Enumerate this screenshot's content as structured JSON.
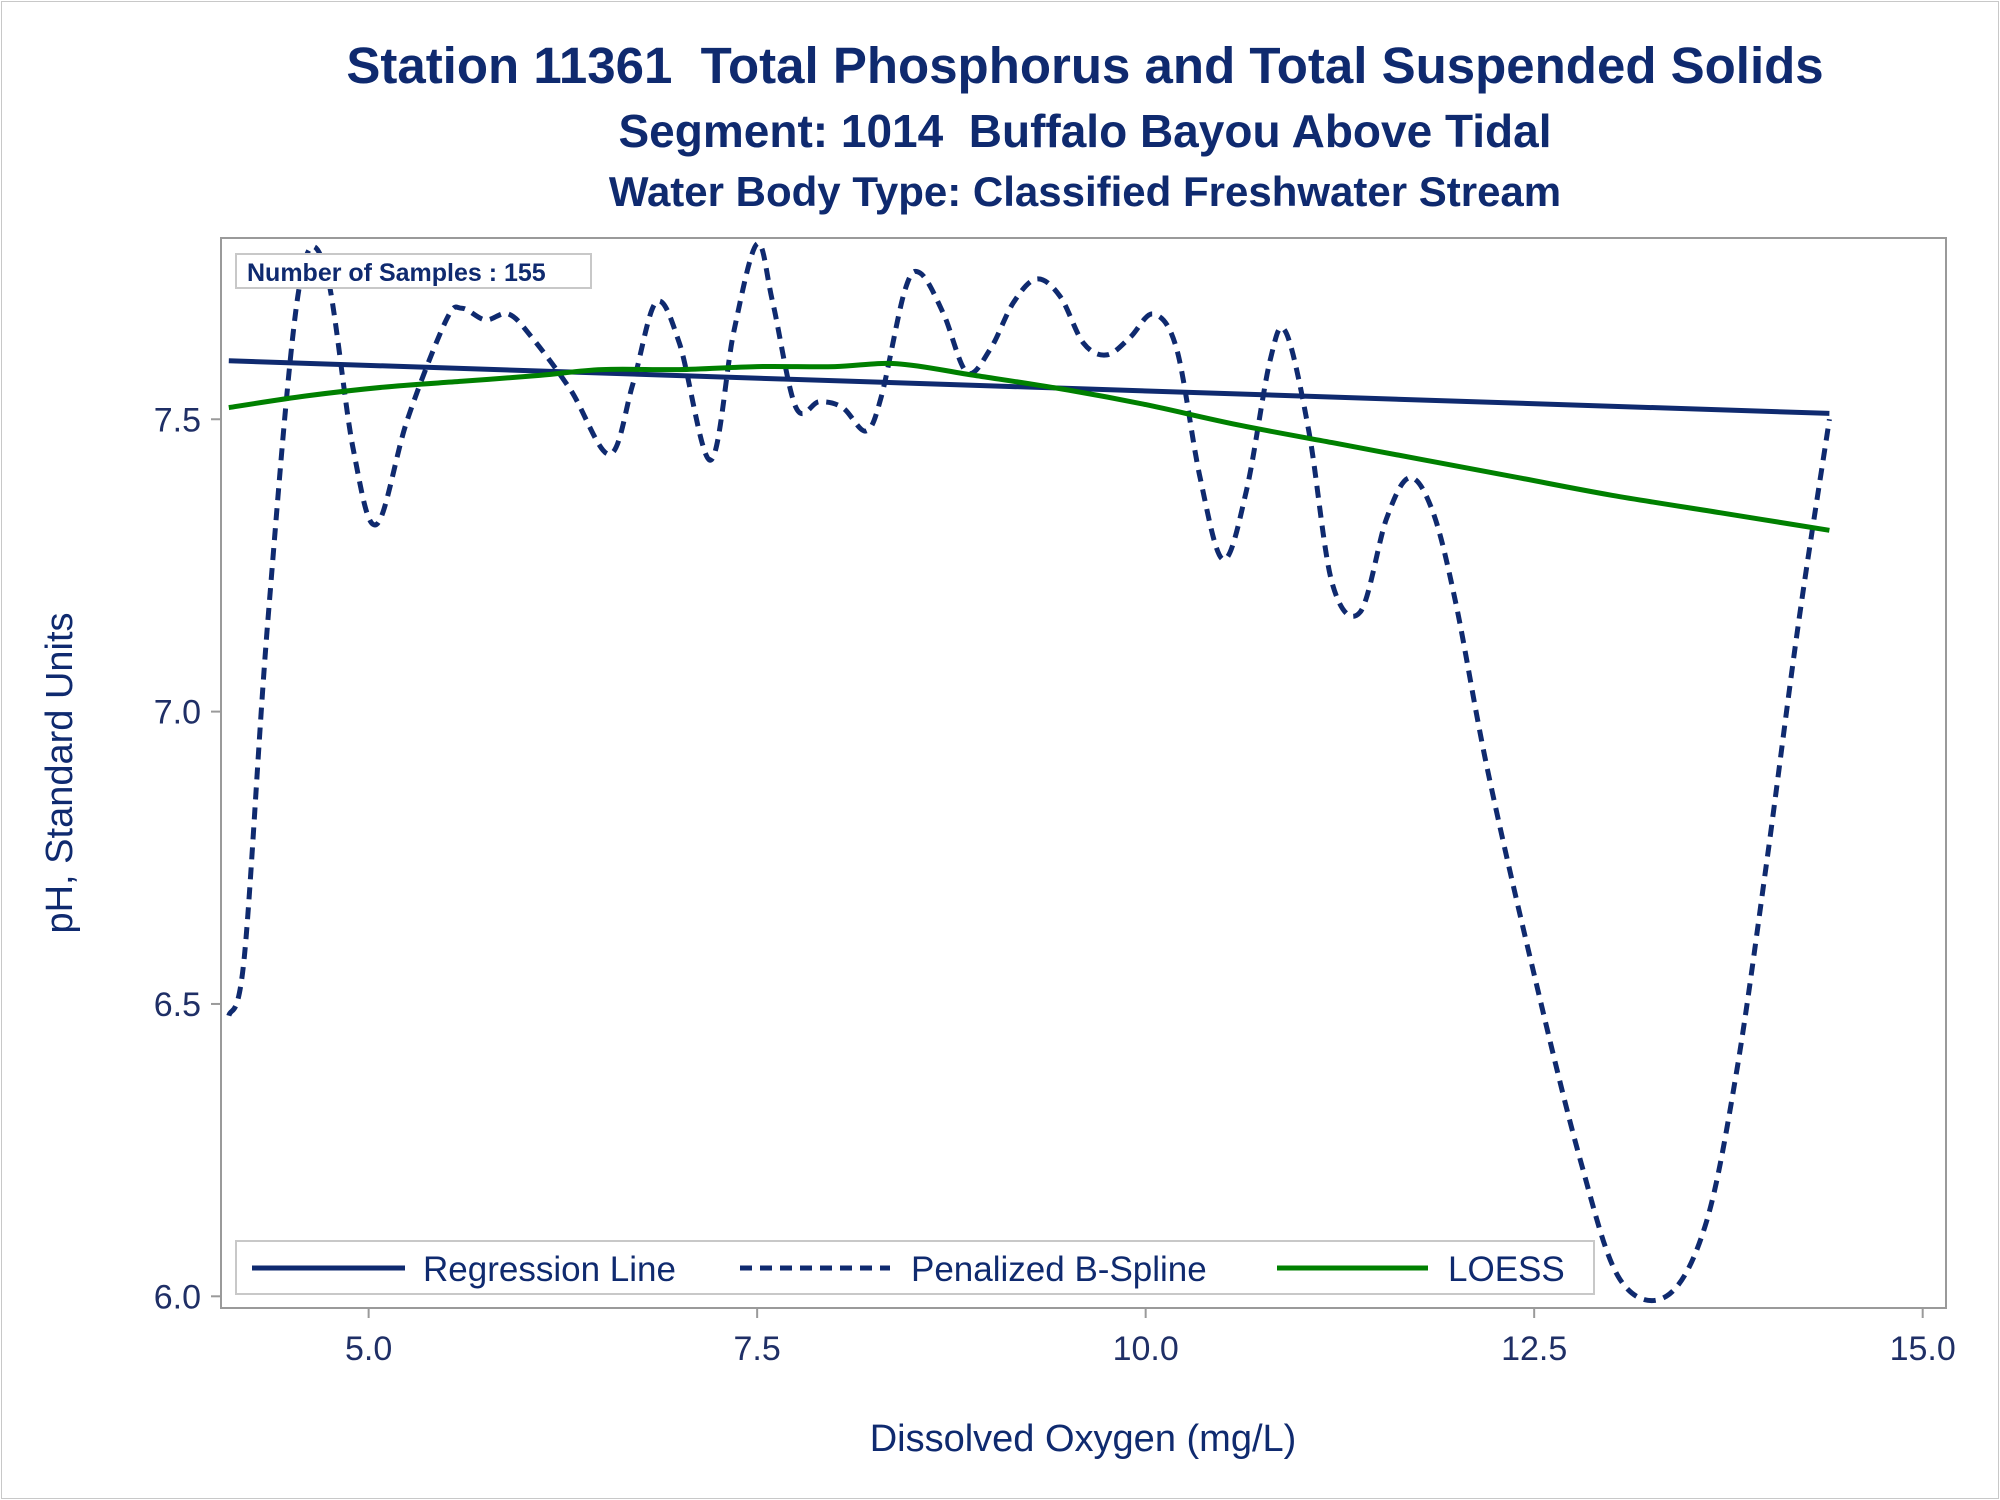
{
  "chart_data": {
    "type": "line",
    "title": "Station 11361  Total Phosphorus and Total Suspended Solids",
    "subtitle": "Segment: 1014  Buffalo Bayou Above Tidal",
    "subtitle2": "Water Body Type: Classified Freshwater Stream",
    "xlabel": "Dissolved Oxygen (mg/L)",
    "ylabel": "pH, Standard Units",
    "xlim": [
      4.05,
      15.15
    ],
    "ylim": [
      5.98,
      7.81
    ],
    "xticks": [
      "5.0",
      "7.5",
      "10.0",
      "12.5",
      "15.0"
    ],
    "yticks": [
      "6.0",
      "6.5",
      "7.0",
      "7.5"
    ],
    "annotation": "Number of Samples : 155",
    "legend_position": "bottom-inside",
    "grid": false,
    "series": [
      {
        "name": "Regression Line",
        "style": "solid",
        "color": "#0f2a6f",
        "x": [
          4.1,
          14.4
        ],
        "y": [
          7.6,
          7.51
        ]
      },
      {
        "name": "Penalized B-Spline",
        "style": "dashed",
        "color": "#0f2a6f",
        "x": [
          4.1,
          4.2,
          4.35,
          4.55,
          4.72,
          4.9,
          5.05,
          5.25,
          5.5,
          5.6,
          5.75,
          5.9,
          6.05,
          6.3,
          6.55,
          6.7,
          6.85,
          7.0,
          7.2,
          7.35,
          7.5,
          7.6,
          7.75,
          7.9,
          8.05,
          8.2,
          8.3,
          8.45,
          8.55,
          8.7,
          8.85,
          9.0,
          9.15,
          9.3,
          9.45,
          9.6,
          9.75,
          9.9,
          10.05,
          10.2,
          10.35,
          10.5,
          10.65,
          10.8,
          10.9,
          11.05,
          11.2,
          11.38,
          11.55,
          11.7,
          11.85,
          12.0,
          12.2,
          12.5,
          12.8,
          13.05,
          13.35,
          13.6,
          13.8,
          14.0,
          14.2,
          14.4
        ],
        "y": [
          6.48,
          6.58,
          7.15,
          7.72,
          7.76,
          7.45,
          7.32,
          7.5,
          7.67,
          7.69,
          7.67,
          7.68,
          7.64,
          7.55,
          7.44,
          7.56,
          7.7,
          7.63,
          7.43,
          7.65,
          7.8,
          7.7,
          7.52,
          7.53,
          7.52,
          7.48,
          7.54,
          7.72,
          7.75,
          7.68,
          7.58,
          7.62,
          7.7,
          7.74,
          7.71,
          7.63,
          7.61,
          7.64,
          7.68,
          7.62,
          7.4,
          7.26,
          7.38,
          7.6,
          7.65,
          7.48,
          7.22,
          7.17,
          7.33,
          7.4,
          7.34,
          7.18,
          6.9,
          6.55,
          6.23,
          6.03,
          6.0,
          6.12,
          6.38,
          6.75,
          7.15,
          7.5
        ]
      },
      {
        "name": "LOESS",
        "style": "solid",
        "color": "#008000",
        "x": [
          4.1,
          4.6,
          5.1,
          5.6,
          6.1,
          6.5,
          7.0,
          7.5,
          8.0,
          8.4,
          8.9,
          9.5,
          10.0,
          10.6,
          11.2,
          11.8,
          12.4,
          13.0,
          13.7,
          14.4
        ],
        "y": [
          7.52,
          7.54,
          7.555,
          7.565,
          7.575,
          7.585,
          7.585,
          7.59,
          7.59,
          7.595,
          7.575,
          7.55,
          7.525,
          7.49,
          7.46,
          7.43,
          7.4,
          7.37,
          7.34,
          7.31
        ]
      }
    ]
  }
}
